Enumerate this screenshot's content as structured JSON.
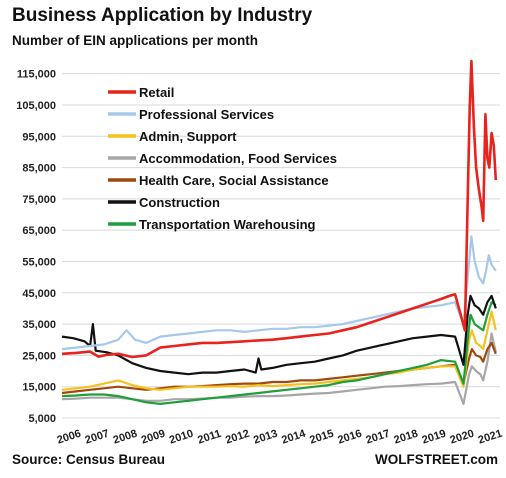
{
  "chart_data": {
    "type": "line",
    "title": "Business Application by Industry",
    "subtitle": "Number of EIN applications per month",
    "source": "Source: Census Bureau",
    "brand": "WOLFSTREET.com",
    "ylim": [
      5000,
      120000
    ],
    "yticks": [
      115000,
      105000,
      95000,
      85000,
      75000,
      65000,
      55000,
      45000,
      35000,
      25000,
      15000,
      5000
    ],
    "ytick_labels": [
      "115,000",
      "105,000",
      "95,000",
      "85,000",
      "75,000",
      "65,000",
      "55,000",
      "45,000",
      "35,000",
      "25,000",
      "15,000",
      "5,000"
    ],
    "xlim": [
      2006.0,
      2021.6
    ],
    "xticks": [
      2006,
      2007,
      2008,
      2009,
      2010,
      2011,
      2012,
      2013,
      2014,
      2015,
      2016,
      2017,
      2018,
      2019,
      2020,
      2021
    ],
    "xtick_labels": [
      "2006",
      "2007",
      "2008",
      "2009",
      "2010",
      "2011",
      "2012",
      "2013",
      "2014",
      "2015",
      "2016",
      "2017",
      "2018",
      "2019",
      "2020",
      "2021"
    ],
    "legend_position": "top-left",
    "grid": true,
    "series": [
      {
        "name": "Retail",
        "color": "#e8221c",
        "points": [
          [
            2006.0,
            25500
          ],
          [
            2006.5,
            25800
          ],
          [
            2007.0,
            26200
          ],
          [
            2007.3,
            24600
          ],
          [
            2007.6,
            25200
          ],
          [
            2008.0,
            25500
          ],
          [
            2008.5,
            24500
          ],
          [
            2009.0,
            25000
          ],
          [
            2009.5,
            27500
          ],
          [
            2010.0,
            28000
          ],
          [
            2010.5,
            28500
          ],
          [
            2011.0,
            29000
          ],
          [
            2011.5,
            29000
          ],
          [
            2012.0,
            29200
          ],
          [
            2012.5,
            29500
          ],
          [
            2013.0,
            29800
          ],
          [
            2013.5,
            30000
          ],
          [
            2014.0,
            30500
          ],
          [
            2014.5,
            31000
          ],
          [
            2015.0,
            31500
          ],
          [
            2015.5,
            32000
          ],
          [
            2016.0,
            33000
          ],
          [
            2016.5,
            34000
          ],
          [
            2017.0,
            35500
          ],
          [
            2017.5,
            37000
          ],
          [
            2018.0,
            38500
          ],
          [
            2018.5,
            40000
          ],
          [
            2019.0,
            41500
          ],
          [
            2019.5,
            43000
          ],
          [
            2019.8,
            44000
          ],
          [
            2020.0,
            44500
          ],
          [
            2020.2,
            38000
          ],
          [
            2020.35,
            33000
          ],
          [
            2020.45,
            75000
          ],
          [
            2020.52,
            104000
          ],
          [
            2020.58,
            119000
          ],
          [
            2020.67,
            98000
          ],
          [
            2020.75,
            85000
          ],
          [
            2020.85,
            78000
          ],
          [
            2020.95,
            72000
          ],
          [
            2021.0,
            68000
          ],
          [
            2021.08,
            102000
          ],
          [
            2021.15,
            88000
          ],
          [
            2021.22,
            85000
          ],
          [
            2021.3,
            96000
          ],
          [
            2021.38,
            92000
          ],
          [
            2021.45,
            81000
          ]
        ]
      },
      {
        "name": "Professional Services",
        "color": "#a6c8ea",
        "points": [
          [
            2006.0,
            27000
          ],
          [
            2006.5,
            27500
          ],
          [
            2007.0,
            28000
          ],
          [
            2007.5,
            28500
          ],
          [
            2008.0,
            30000
          ],
          [
            2008.3,
            33000
          ],
          [
            2008.6,
            30000
          ],
          [
            2009.0,
            29000
          ],
          [
            2009.5,
            31000
          ],
          [
            2010.0,
            31500
          ],
          [
            2010.5,
            32000
          ],
          [
            2011.0,
            32500
          ],
          [
            2011.5,
            33000
          ],
          [
            2012.0,
            33000
          ],
          [
            2012.5,
            32500
          ],
          [
            2013.0,
            33000
          ],
          [
            2013.5,
            33500
          ],
          [
            2014.0,
            33500
          ],
          [
            2014.5,
            34000
          ],
          [
            2015.0,
            34000
          ],
          [
            2015.5,
            34500
          ],
          [
            2016.0,
            35000
          ],
          [
            2016.5,
            36000
          ],
          [
            2017.0,
            37000
          ],
          [
            2017.5,
            38000
          ],
          [
            2018.0,
            39000
          ],
          [
            2018.5,
            40000
          ],
          [
            2019.0,
            40500
          ],
          [
            2019.5,
            41000
          ],
          [
            2020.0,
            42000
          ],
          [
            2020.3,
            35000
          ],
          [
            2020.5,
            55000
          ],
          [
            2020.58,
            63000
          ],
          [
            2020.7,
            55000
          ],
          [
            2020.85,
            50000
          ],
          [
            2021.0,
            48000
          ],
          [
            2021.1,
            52000
          ],
          [
            2021.2,
            57000
          ],
          [
            2021.3,
            54000
          ],
          [
            2021.45,
            52000
          ]
        ]
      },
      {
        "name": "Admin, Support",
        "color": "#f5c11c",
        "points": [
          [
            2006.0,
            14000
          ],
          [
            2006.5,
            14500
          ],
          [
            2007.0,
            15000
          ],
          [
            2007.5,
            16000
          ],
          [
            2008.0,
            17000
          ],
          [
            2008.5,
            15500
          ],
          [
            2009.0,
            14500
          ],
          [
            2009.5,
            14000
          ],
          [
            2010.0,
            14500
          ],
          [
            2010.5,
            15000
          ],
          [
            2011.0,
            15000
          ],
          [
            2011.5,
            15000
          ],
          [
            2012.0,
            15200
          ],
          [
            2012.5,
            15000
          ],
          [
            2013.0,
            15500
          ],
          [
            2013.5,
            15200
          ],
          [
            2014.0,
            15500
          ],
          [
            2014.5,
            15800
          ],
          [
            2015.0,
            16000
          ],
          [
            2015.5,
            16500
          ],
          [
            2016.0,
            17000
          ],
          [
            2016.5,
            17500
          ],
          [
            2017.0,
            18000
          ],
          [
            2017.5,
            19000
          ],
          [
            2018.0,
            19500
          ],
          [
            2018.5,
            20500
          ],
          [
            2019.0,
            21000
          ],
          [
            2019.5,
            21500
          ],
          [
            2020.0,
            21500
          ],
          [
            2020.3,
            15000
          ],
          [
            2020.5,
            30000
          ],
          [
            2020.6,
            33000
          ],
          [
            2020.75,
            29000
          ],
          [
            2020.9,
            28000
          ],
          [
            2021.0,
            27000
          ],
          [
            2021.15,
            33000
          ],
          [
            2021.3,
            39000
          ],
          [
            2021.45,
            33000
          ]
        ]
      },
      {
        "name": "Accommodation, Food Services",
        "color": "#a6a6a6",
        "points": [
          [
            2006.0,
            11000
          ],
          [
            2006.5,
            11200
          ],
          [
            2007.0,
            11500
          ],
          [
            2007.5,
            11500
          ],
          [
            2008.0,
            11500
          ],
          [
            2008.5,
            11000
          ],
          [
            2009.0,
            10500
          ],
          [
            2009.5,
            10500
          ],
          [
            2010.0,
            11000
          ],
          [
            2010.5,
            11000
          ],
          [
            2011.0,
            11200
          ],
          [
            2011.5,
            11500
          ],
          [
            2012.0,
            11500
          ],
          [
            2012.5,
            11800
          ],
          [
            2013.0,
            12000
          ],
          [
            2013.5,
            12000
          ],
          [
            2014.0,
            12200
          ],
          [
            2014.5,
            12500
          ],
          [
            2015.0,
            12800
          ],
          [
            2015.5,
            13000
          ],
          [
            2016.0,
            13500
          ],
          [
            2016.5,
            14000
          ],
          [
            2017.0,
            14500
          ],
          [
            2017.5,
            15000
          ],
          [
            2018.0,
            15200
          ],
          [
            2018.5,
            15500
          ],
          [
            2019.0,
            15800
          ],
          [
            2019.5,
            16000
          ],
          [
            2020.0,
            16500
          ],
          [
            2020.3,
            9500
          ],
          [
            2020.5,
            19000
          ],
          [
            2020.6,
            21500
          ],
          [
            2020.75,
            20000
          ],
          [
            2020.9,
            19000
          ],
          [
            2021.0,
            17000
          ],
          [
            2021.15,
            23000
          ],
          [
            2021.3,
            32000
          ],
          [
            2021.45,
            26000
          ]
        ]
      },
      {
        "name": "Health Care, Social Assistance",
        "color": "#9e4a0f",
        "points": [
          [
            2006.0,
            13000
          ],
          [
            2006.5,
            13500
          ],
          [
            2007.0,
            14000
          ],
          [
            2007.5,
            14500
          ],
          [
            2008.0,
            15000
          ],
          [
            2008.5,
            14500
          ],
          [
            2009.0,
            14000
          ],
          [
            2009.5,
            14500
          ],
          [
            2010.0,
            15000
          ],
          [
            2010.5,
            15000
          ],
          [
            2011.0,
            15200
          ],
          [
            2011.5,
            15500
          ],
          [
            2012.0,
            15800
          ],
          [
            2012.5,
            16000
          ],
          [
            2013.0,
            16000
          ],
          [
            2013.5,
            16500
          ],
          [
            2014.0,
            16500
          ],
          [
            2014.5,
            17000
          ],
          [
            2015.0,
            17000
          ],
          [
            2015.5,
            17500
          ],
          [
            2016.0,
            18000
          ],
          [
            2016.5,
            18500
          ],
          [
            2017.0,
            19000
          ],
          [
            2017.5,
            19500
          ],
          [
            2018.0,
            20000
          ],
          [
            2018.5,
            20500
          ],
          [
            2019.0,
            21000
          ],
          [
            2019.5,
            21500
          ],
          [
            2020.0,
            22000
          ],
          [
            2020.3,
            16000
          ],
          [
            2020.5,
            24000
          ],
          [
            2020.6,
            27000
          ],
          [
            2020.75,
            25000
          ],
          [
            2020.9,
            24500
          ],
          [
            2021.0,
            23000
          ],
          [
            2021.15,
            27000
          ],
          [
            2021.3,
            29000
          ],
          [
            2021.45,
            25500
          ]
        ]
      },
      {
        "name": "Construction",
        "color": "#111111",
        "points": [
          [
            2006.0,
            31000
          ],
          [
            2006.4,
            30500
          ],
          [
            2006.8,
            29500
          ],
          [
            2007.0,
            28000
          ],
          [
            2007.1,
            35000
          ],
          [
            2007.2,
            26500
          ],
          [
            2007.6,
            26000
          ],
          [
            2008.0,
            25000
          ],
          [
            2008.5,
            22500
          ],
          [
            2009.0,
            21000
          ],
          [
            2009.5,
            20000
          ],
          [
            2010.0,
            19500
          ],
          [
            2010.5,
            19000
          ],
          [
            2011.0,
            19500
          ],
          [
            2011.5,
            19500
          ],
          [
            2012.0,
            20000
          ],
          [
            2012.5,
            20500
          ],
          [
            2012.9,
            19500
          ],
          [
            2013.0,
            24000
          ],
          [
            2013.1,
            20500
          ],
          [
            2013.5,
            21000
          ],
          [
            2014.0,
            22000
          ],
          [
            2014.5,
            22500
          ],
          [
            2015.0,
            23000
          ],
          [
            2015.5,
            24000
          ],
          [
            2016.0,
            25000
          ],
          [
            2016.5,
            26500
          ],
          [
            2017.0,
            27500
          ],
          [
            2017.5,
            28500
          ],
          [
            2018.0,
            29500
          ],
          [
            2018.5,
            30500
          ],
          [
            2019.0,
            31000
          ],
          [
            2019.5,
            31500
          ],
          [
            2020.0,
            31000
          ],
          [
            2020.3,
            22000
          ],
          [
            2020.45,
            38000
          ],
          [
            2020.55,
            44000
          ],
          [
            2020.7,
            41000
          ],
          [
            2020.85,
            40000
          ],
          [
            2021.0,
            38000
          ],
          [
            2021.15,
            42000
          ],
          [
            2021.3,
            44000
          ],
          [
            2021.45,
            40000
          ]
        ]
      },
      {
        "name": "Transportation Warehousing",
        "color": "#1f9e3c",
        "points": [
          [
            2006.0,
            12000
          ],
          [
            2006.5,
            12200
          ],
          [
            2007.0,
            12500
          ],
          [
            2007.5,
            12500
          ],
          [
            2008.0,
            12000
          ],
          [
            2008.5,
            11000
          ],
          [
            2009.0,
            10000
          ],
          [
            2009.5,
            9500
          ],
          [
            2010.0,
            10000
          ],
          [
            2010.5,
            10500
          ],
          [
            2011.0,
            11000
          ],
          [
            2011.5,
            11500
          ],
          [
            2012.0,
            12000
          ],
          [
            2012.5,
            12500
          ],
          [
            2013.0,
            13000
          ],
          [
            2013.5,
            13500
          ],
          [
            2014.0,
            14000
          ],
          [
            2014.5,
            14500
          ],
          [
            2015.0,
            15000
          ],
          [
            2015.5,
            15500
          ],
          [
            2016.0,
            16500
          ],
          [
            2016.5,
            17000
          ],
          [
            2017.0,
            18000
          ],
          [
            2017.5,
            19000
          ],
          [
            2018.0,
            20000
          ],
          [
            2018.5,
            21000
          ],
          [
            2019.0,
            22000
          ],
          [
            2019.5,
            23500
          ],
          [
            2020.0,
            23000
          ],
          [
            2020.3,
            16000
          ],
          [
            2020.45,
            30000
          ],
          [
            2020.55,
            38000
          ],
          [
            2020.7,
            35000
          ],
          [
            2020.85,
            34000
          ],
          [
            2021.0,
            33000
          ],
          [
            2021.15,
            38000
          ],
          [
            2021.3,
            42000
          ],
          [
            2021.45,
            41000
          ]
        ]
      }
    ]
  }
}
